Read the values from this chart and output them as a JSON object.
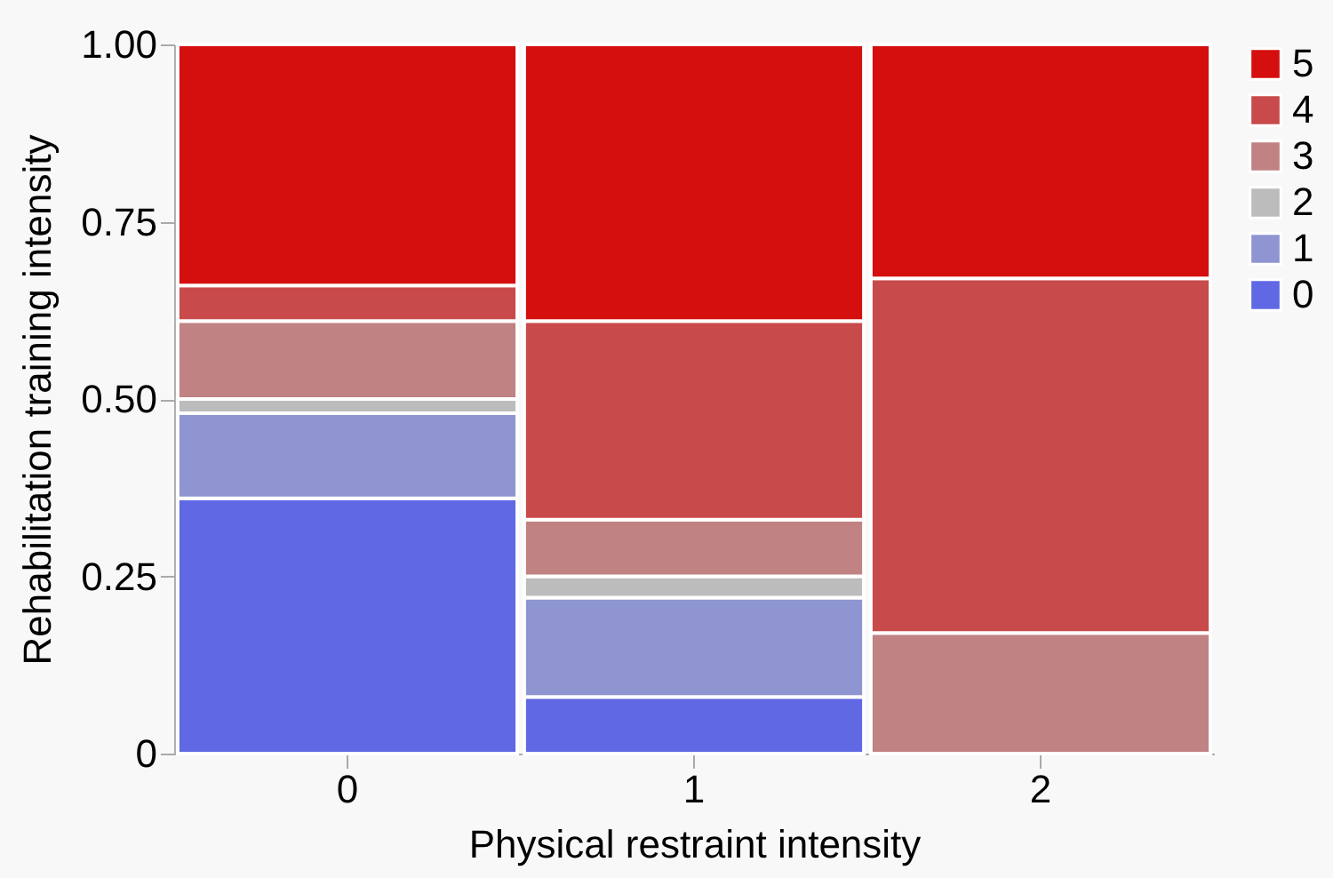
{
  "chart_data": {
    "type": "bar",
    "stacked": true,
    "xlabel": "Physical restraint intensity",
    "ylabel": "Rehabilitation training intensity",
    "categories": [
      "0",
      "1",
      "2"
    ],
    "series": [
      {
        "name": "0",
        "color": "#6068e3",
        "values": [
          0.36,
          0.08,
          0
        ]
      },
      {
        "name": "1",
        "color": "#8f95d0",
        "values": [
          0.12,
          0.14,
          0
        ]
      },
      {
        "name": "2",
        "color": "#bcbcbc",
        "values": [
          0.02,
          0.03,
          0
        ]
      },
      {
        "name": "3",
        "color": "#c08282",
        "values": [
          0.11,
          0.08,
          0.17
        ]
      },
      {
        "name": "4",
        "color": "#c84a4a",
        "values": [
          0.05,
          0.28,
          0.5
        ]
      },
      {
        "name": "5",
        "color": "#d50e0e",
        "values": [
          0.34,
          0.39,
          0.33
        ]
      }
    ],
    "ylim": [
      0,
      1
    ],
    "yticks": [
      0,
      {
        "value": 0.25,
        "label": "0.25"
      },
      {
        "value": 0.5,
        "label": "0.50"
      },
      {
        "value": 0.75,
        "label": "0.75"
      },
      {
        "value": 1,
        "label": "1.00"
      }
    ],
    "legend": "right",
    "grid": false
  }
}
